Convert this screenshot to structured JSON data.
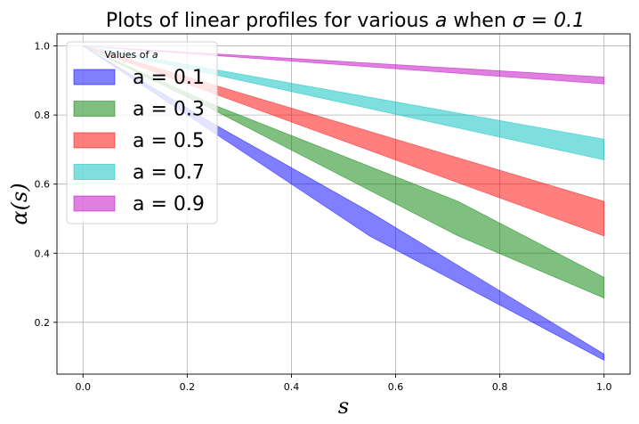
{
  "chart_data": {
    "type": "area",
    "title_text": "Plots of linear profiles for various ",
    "title_var_a": "a",
    "title_when": " when ",
    "title_sigma": "σ = 0.1",
    "xlabel": "s",
    "ylabel": "α(s)",
    "xlim": [
      -0.05,
      1.05
    ],
    "ylim": [
      0.05,
      1.035
    ],
    "xticks": [
      0.0,
      0.2,
      0.4,
      0.6,
      0.8,
      1.0
    ],
    "xtick_labels": [
      "0.0",
      "0.2",
      "0.4",
      "0.6",
      "0.8",
      "1.0"
    ],
    "yticks": [
      0.2,
      0.4,
      0.6,
      0.8,
      1.0
    ],
    "ytick_labels": [
      "0.2",
      "0.4",
      "0.6",
      "0.8",
      "1.0"
    ],
    "grid": true,
    "legend_title_prefix": "Values of ",
    "legend_title_var": "a",
    "legend_position": "top-left",
    "series": [
      {
        "name": "a = 0.1",
        "color": "#0000ff",
        "x": [
          0.0,
          0.25,
          0.55,
          1.0
        ],
        "upper": [
          1.0,
          0.775,
          0.52,
          0.108
        ],
        "lower": [
          1.0,
          0.75,
          0.45,
          0.09
        ]
      },
      {
        "name": "a = 0.3",
        "color": "#008000",
        "x": [
          0.0,
          0.25,
          0.72,
          1.0
        ],
        "upper": [
          1.0,
          0.83,
          0.55,
          0.33
        ],
        "lower": [
          1.0,
          0.815,
          0.45,
          0.27
        ]
      },
      {
        "name": "a = 0.5",
        "color": "#ff0000",
        "x": [
          0.0,
          1.0
        ],
        "upper": [
          1.0,
          0.55
        ],
        "lower": [
          1.0,
          0.45
        ]
      },
      {
        "name": "a = 0.7",
        "color": "#00bfbf",
        "x": [
          0.0,
          1.0
        ],
        "upper": [
          1.0,
          0.73
        ],
        "lower": [
          1.0,
          0.67
        ]
      },
      {
        "name": "a = 0.9",
        "color": "#bf00bf",
        "x": [
          0.0,
          1.0
        ],
        "upper": [
          1.0,
          0.91
        ],
        "lower": [
          1.0,
          0.89
        ]
      }
    ]
  }
}
